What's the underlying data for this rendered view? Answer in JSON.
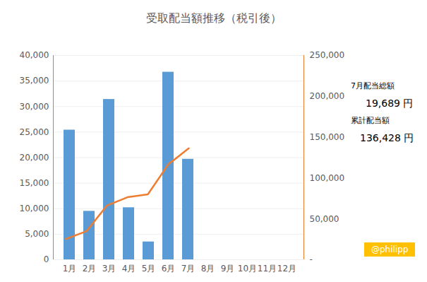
{
  "chart_data": {
    "type": "bar",
    "title": "受取配当額推移（税引後）",
    "categories": [
      "1月",
      "2月",
      "3月",
      "4月",
      "5月",
      "6月",
      "7月",
      "8月",
      "9月",
      "10月",
      "11月",
      "12月"
    ],
    "series": [
      {
        "type": "bar",
        "color": "#5b9bd5",
        "values": [
          25400,
          9500,
          31400,
          10200,
          3500,
          36739,
          19689,
          null,
          null,
          null,
          null,
          null
        ]
      },
      {
        "type": "line",
        "color": "#ed7d31",
        "axis": "y2",
        "values": [
          25400,
          34900,
          66300,
          76500,
          80000,
          116739,
          136428,
          null,
          null,
          null,
          null,
          null
        ]
      }
    ],
    "ylim": [
      0,
      40000
    ],
    "yticks": [
      0,
      {
        "value": 5000,
        "label": "5,000"
      },
      {
        "value": 10000,
        "label": "10,000"
      },
      {
        "value": 15000,
        "label": "15,000"
      },
      {
        "value": 20000,
        "label": "20,000"
      },
      {
        "value": 25000,
        "label": "25,000"
      },
      {
        "value": 30000,
        "label": "30,000"
      },
      {
        "value": 35000,
        "label": "35,000"
      },
      {
        "value": 40000,
        "label": "40,000"
      }
    ],
    "y2lim": [
      0,
      250000
    ],
    "y2ticks": [
      {
        "value": 0,
        "label": "-"
      },
      {
        "value": 50000,
        "label": "50,000"
      },
      {
        "value": 100000,
        "label": "100,000"
      },
      {
        "value": 150000,
        "label": "150,000"
      },
      {
        "value": 200000,
        "label": "200,000"
      },
      {
        "value": 250000,
        "label": "250,000"
      }
    ],
    "grid": true,
    "annotations": [
      "7月配当総額",
      "19,689 円",
      "累計配当額",
      "136,428 円",
      "@philipp"
    ]
  }
}
